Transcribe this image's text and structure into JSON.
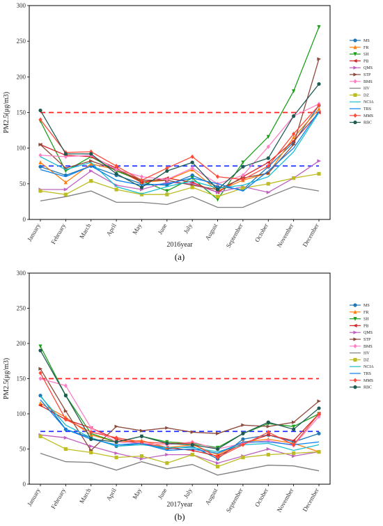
{
  "chart_data": [
    {
      "type": "line",
      "panel_label": "(a)",
      "xlabel": "2016year",
      "ylabel": "PM2.5(μg/m3)",
      "ylim": [
        0,
        300
      ],
      "yticks": [
        0,
        50,
        100,
        150,
        200,
        250,
        300
      ],
      "categories": [
        "January",
        "February",
        "March",
        "April",
        "May",
        "June",
        "July",
        "August",
        "September",
        "October",
        "November",
        "December"
      ],
      "reference_lines": [
        {
          "value": 150,
          "color": "#ff2020",
          "style": "dashed"
        },
        {
          "value": 75,
          "color": "#2030ff",
          "style": "dashed"
        }
      ],
      "legend_position": "right",
      "series": [
        {
          "name": "MS",
          "color": "#1f77b4",
          "marker": "circle",
          "values": [
            74,
            62,
            75,
            62,
            50,
            48,
            62,
            46,
            42,
            74,
            108,
            160
          ]
        },
        {
          "name": "FR",
          "color": "#ff7f0e",
          "marker": "triangle",
          "values": [
            80,
            52,
            78,
            70,
            52,
            55,
            70,
            40,
            55,
            65,
            115,
            155
          ]
        },
        {
          "name": "SH",
          "color": "#1ea01e",
          "marker": "tri-down",
          "values": [
            138,
            68,
            88,
            68,
            54,
            40,
            58,
            28,
            80,
            116,
            180,
            270
          ]
        },
        {
          "name": "PB",
          "color": "#d62728",
          "marker": "tri-left",
          "values": [
            105,
            90,
            88,
            72,
            52,
            58,
            52,
            38,
            60,
            80,
            110,
            150
          ]
        },
        {
          "name": "QMS",
          "color": "#c060c0",
          "marker": "tri-right",
          "values": [
            42,
            42,
            68,
            48,
            42,
            52,
            50,
            38,
            46,
            38,
            58,
            82
          ]
        },
        {
          "name": "STP",
          "color": "#8c4a3c",
          "marker": "tri-right",
          "values": [
            105,
            72,
            82,
            70,
            55,
            55,
            48,
            42,
            58,
            65,
            105,
            225
          ]
        },
        {
          "name": "BMS",
          "color": "#ff7fc4",
          "marker": "diamond",
          "values": [
            90,
            88,
            90,
            70,
            60,
            56,
            72,
            50,
            62,
            102,
            145,
            162
          ]
        },
        {
          "name": "HV",
          "color": "#7f7f7f",
          "marker": "none",
          "values": [
            26,
            32,
            40,
            24,
            24,
            21,
            32,
            17,
            17,
            32,
            46,
            40
          ]
        },
        {
          "name": "DZ",
          "color": "#bcbd22",
          "marker": "square",
          "values": [
            40,
            35,
            54,
            42,
            35,
            35,
            45,
            32,
            44,
            50,
            58,
            64
          ]
        },
        {
          "name": "NCIA",
          "color": "#17becf",
          "marker": "none",
          "values": [
            88,
            70,
            80,
            46,
            36,
            46,
            54,
            44,
            48,
            60,
            95,
            150
          ]
        },
        {
          "name": "TRS",
          "color": "#0a7ff0",
          "marker": "none",
          "values": [
            70,
            60,
            75,
            55,
            48,
            50,
            58,
            50,
            40,
            68,
            100,
            152
          ]
        },
        {
          "name": "MMS",
          "color": "#ff4a3a",
          "marker": "diamond",
          "values": [
            140,
            94,
            95,
            75,
            55,
            72,
            88,
            60,
            56,
            75,
            120,
            160
          ]
        },
        {
          "name": "RBC",
          "color": "#1e5a52",
          "marker": "circle",
          "values": [
            153,
            92,
            92,
            64,
            45,
            68,
            80,
            42,
            74,
            86,
            145,
            190
          ]
        }
      ]
    },
    {
      "type": "line",
      "panel_label": "(b)",
      "xlabel": "2017year",
      "ylabel": "PM2.5(μg/m3)",
      "ylim": [
        0,
        300
      ],
      "yticks": [
        0,
        50,
        100,
        150,
        200,
        250,
        300
      ],
      "categories": [
        "January",
        "February",
        "March",
        "April",
        "May",
        "June",
        "July",
        "August",
        "September",
        "October",
        "November",
        "December"
      ],
      "reference_lines": [
        {
          "value": 150,
          "color": "#ff2020",
          "style": "dashed"
        },
        {
          "value": 75,
          "color": "#2030ff",
          "style": "dashed"
        }
      ],
      "legend_position": "right",
      "series": [
        {
          "name": "MS",
          "color": "#1f77b4",
          "marker": "circle",
          "values": [
            126,
            78,
            66,
            54,
            58,
            50,
            54,
            36,
            64,
            70,
            60,
            72
          ]
        },
        {
          "name": "FR",
          "color": "#ff7f0e",
          "marker": "triangle",
          "values": [
            115,
            95,
            70,
            60,
            62,
            52,
            56,
            42,
            60,
            64,
            58,
            46
          ]
        },
        {
          "name": "SH",
          "color": "#1ea01e",
          "marker": "tri-down",
          "values": [
            196,
            126,
            72,
            60,
            68,
            60,
            58,
            52,
            72,
            86,
            82,
            100
          ]
        },
        {
          "name": "PB",
          "color": "#d62728",
          "marker": "tri-left",
          "values": [
            112,
            92,
            80,
            64,
            58,
            52,
            48,
            40,
            58,
            70,
            62,
            100
          ]
        },
        {
          "name": "QMS",
          "color": "#c060c0",
          "marker": "tri-right",
          "values": [
            70,
            66,
            54,
            44,
            36,
            42,
            42,
            30,
            40,
            50,
            40,
            46
          ]
        },
        {
          "name": "STP",
          "color": "#8c4a3c",
          "marker": "tri-right",
          "values": [
            164,
            104,
            48,
            82,
            76,
            80,
            74,
            72,
            84,
            82,
            88,
            118
          ]
        },
        {
          "name": "BMS",
          "color": "#ff7fc4",
          "marker": "diamond",
          "values": [
            150,
            140,
            80,
            60,
            58,
            56,
            60,
            50,
            58,
            62,
            55,
            96
          ]
        },
        {
          "name": "HV",
          "color": "#7f7f7f",
          "marker": "none",
          "values": [
            44,
            32,
            31,
            20,
            32,
            22,
            28,
            13,
            20,
            27,
            26,
            19
          ]
        },
        {
          "name": "DZ",
          "color": "#bcbd22",
          "marker": "square",
          "values": [
            68,
            50,
            45,
            38,
            40,
            30,
            42,
            25,
            38,
            42,
            44,
            46
          ]
        },
        {
          "name": "NCIA",
          "color": "#17becf",
          "marker": "none",
          "values": [
            125,
            84,
            66,
            54,
            56,
            52,
            52,
            46,
            56,
            58,
            48,
            56
          ]
        },
        {
          "name": "TRS",
          "color": "#0a7ff0",
          "marker": "none",
          "values": [
            120,
            78,
            64,
            56,
            58,
            48,
            50,
            44,
            60,
            60,
            56,
            60
          ]
        },
        {
          "name": "MMS",
          "color": "#ff4a3a",
          "marker": "diamond",
          "values": [
            158,
            92,
            74,
            66,
            60,
            58,
            58,
            38,
            56,
            74,
            56,
            100
          ]
        },
        {
          "name": "RBC",
          "color": "#1e5a52",
          "marker": "circle",
          "values": [
            190,
            126,
            64,
            60,
            68,
            58,
            56,
            50,
            72,
            88,
            78,
            108
          ]
        }
      ]
    }
  ]
}
